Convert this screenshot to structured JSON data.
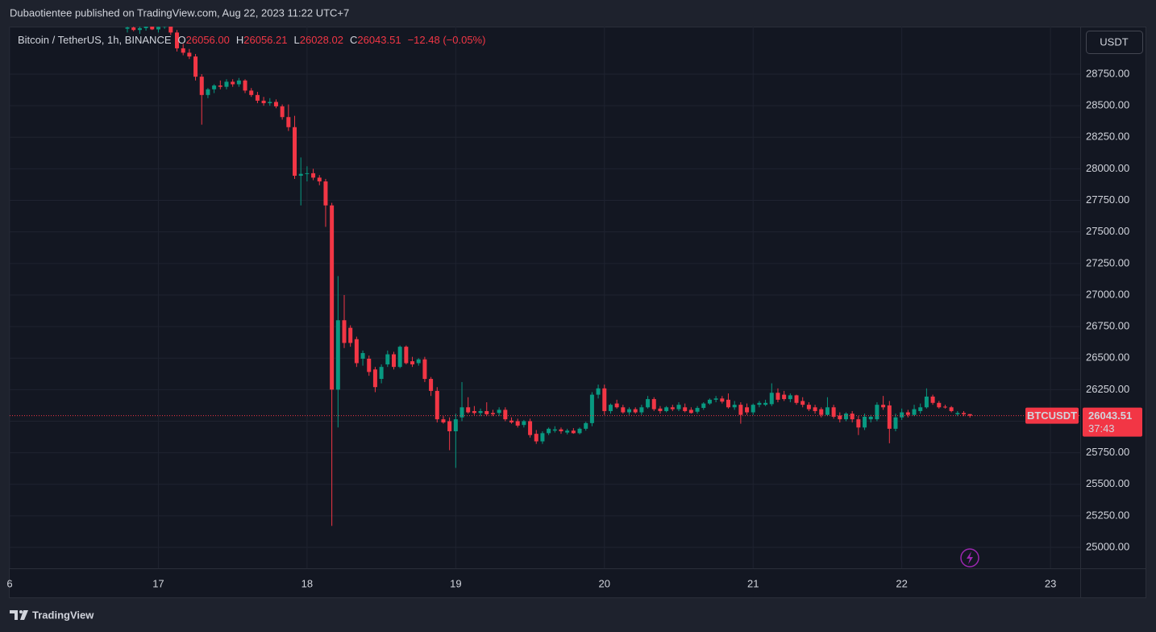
{
  "chart_data": {
    "type": "candlestick",
    "title": "Dubaotientee published on TradingView.com, Aug 22, 2023 11:22 UTC+7",
    "subtitle": "Bitcoin / TetherUS, 1h, BINANCE",
    "ohlc_prefixes": [
      "O",
      "H",
      "L",
      "C"
    ],
    "last_labels": [
      "26056.00",
      "26056.21",
      "26028.02",
      "26043.51"
    ],
    "change": -12.48,
    "change_pct": -0.05,
    "change_label": "−12.48 (−0.05%)",
    "currency": "USDT",
    "symbol": "BTCUSDT",
    "countdown": "37:43",
    "brand": "TradingView",
    "up_color": "#089981",
    "down_color": "#f23645",
    "grid": true,
    "xlim": [
      16,
      23.2
    ],
    "xticks": [
      {
        "value": 16,
        "label": "6"
      },
      17,
      18,
      19,
      20,
      21,
      22,
      23
    ],
    "ylim": [
      24834,
      29127
    ],
    "yticks": [
      {
        "value": 25000,
        "label": "25000.00"
      },
      {
        "value": 25250,
        "label": "25250.00"
      },
      {
        "value": 25500,
        "label": "25500.00"
      },
      {
        "value": 25750,
        "label": "25750.00"
      },
      {
        "value": 26000,
        "label": "26000.00"
      },
      {
        "value": 26250,
        "label": "26250.00"
      },
      {
        "value": 26500,
        "label": "26500.00"
      },
      {
        "value": 26750,
        "label": "26750.00"
      },
      {
        "value": 27000,
        "label": "27000.00"
      },
      {
        "value": 27250,
        "label": "27250.00"
      },
      {
        "value": 27500,
        "label": "27500.00"
      },
      {
        "value": 27750,
        "label": "27750.00"
      },
      {
        "value": 28000,
        "label": "28000.00"
      },
      {
        "value": 28250,
        "label": "28250.00"
      },
      {
        "value": 28500,
        "label": "28500.00"
      },
      {
        "value": 28750,
        "label": "28750.00"
      }
    ],
    "x": [
      16.7917,
      16.8333,
      16.875,
      16.9167,
      16.9583,
      17,
      17.0417,
      17.0833,
      17.125,
      17.1667,
      17.2083,
      17.25,
      17.2917,
      17.3333,
      17.375,
      17.4167,
      17.4583,
      17.5,
      17.5417,
      17.5833,
      17.625,
      17.6667,
      17.7083,
      17.75,
      17.7917,
      17.8333,
      17.875,
      17.9167,
      17.9583,
      18,
      18.0417,
      18.0833,
      18.125,
      18.1667,
      18.2083,
      18.25,
      18.2917,
      18.3333,
      18.375,
      18.4167,
      18.4583,
      18.5,
      18.5417,
      18.5833,
      18.625,
      18.6667,
      18.7083,
      18.75,
      18.7917,
      18.8333,
      18.875,
      18.9167,
      18.9583,
      19,
      19.0417,
      19.0833,
      19.125,
      19.1667,
      19.2083,
      19.25,
      19.2917,
      19.3333,
      19.375,
      19.4167,
      19.4583,
      19.5,
      19.5417,
      19.5833,
      19.625,
      19.6667,
      19.7083,
      19.75,
      19.7917,
      19.8333,
      19.875,
      19.9167,
      19.9583,
      20,
      20.0417,
      20.0833,
      20.125,
      20.1667,
      20.2083,
      20.25,
      20.2917,
      20.3333,
      20.375,
      20.4167,
      20.4583,
      20.5,
      20.5417,
      20.5833,
      20.625,
      20.6667,
      20.7083,
      20.75,
      20.7917,
      20.8333,
      20.875,
      20.9167,
      20.9583,
      21,
      21.0417,
      21.0833,
      21.125,
      21.1667,
      21.2083,
      21.25,
      21.2917,
      21.3333,
      21.375,
      21.4167,
      21.4583,
      21.5,
      21.5417,
      21.5833,
      21.625,
      21.6667,
      21.7083,
      21.75,
      21.7917,
      21.8333,
      21.875,
      21.9167,
      21.9583,
      22,
      22.0417,
      22.0833,
      22.125,
      22.1667,
      22.2083,
      22.25,
      22.2917,
      22.3333,
      22.375,
      22.4167,
      22.4583
    ],
    "ohlc": [
      [
        29110,
        29140,
        29080,
        29120
      ],
      [
        29120,
        29150,
        29090,
        29100
      ],
      [
        29100,
        29130,
        29070,
        29115
      ],
      [
        29115,
        29150,
        29095,
        29130
      ],
      [
        29130,
        29160,
        29100,
        29105
      ],
      [
        29105,
        29140,
        29080,
        29125
      ],
      [
        29125,
        29160,
        29110,
        29140
      ],
      [
        29140,
        29170,
        29060,
        29080
      ],
      [
        29080,
        29100,
        28930,
        28955
      ],
      [
        28955,
        28990,
        28900,
        28920
      ],
      [
        28920,
        28950,
        28870,
        28890
      ],
      [
        28890,
        28910,
        28700,
        28730
      ],
      [
        28730,
        28750,
        28350,
        28585
      ],
      [
        28585,
        28640,
        28560,
        28630
      ],
      [
        28630,
        28670,
        28600,
        28660
      ],
      [
        28660,
        28700,
        28630,
        28650
      ],
      [
        28650,
        28710,
        28630,
        28690
      ],
      [
        28690,
        28710,
        28650,
        28670
      ],
      [
        28670,
        28720,
        28650,
        28700
      ],
      [
        28700,
        28710,
        28600,
        28620
      ],
      [
        28620,
        28640,
        28570,
        28585
      ],
      [
        28585,
        28610,
        28520,
        28540
      ],
      [
        28540,
        28570,
        28500,
        28520
      ],
      [
        28520,
        28560,
        28500,
        28530
      ],
      [
        28530,
        28550,
        28480,
        28495
      ],
      [
        28495,
        28510,
        28390,
        28410
      ],
      [
        28410,
        28510,
        28300,
        28330
      ],
      [
        28330,
        28420,
        27920,
        27945
      ],
      [
        27945,
        28090,
        27710,
        27960
      ],
      [
        27960,
        28020,
        27900,
        27965
      ],
      [
        27965,
        28000,
        27910,
        27930
      ],
      [
        27930,
        27950,
        27870,
        27900
      ],
      [
        27900,
        27920,
        27540,
        27710
      ],
      [
        27710,
        27730,
        25170,
        26250
      ],
      [
        26250,
        27150,
        25950,
        26800
      ],
      [
        26800,
        27000,
        26580,
        26620
      ],
      [
        26740,
        26760,
        26590,
        26620
      ],
      [
        26650,
        26670,
        26430,
        26460
      ],
      [
        26495,
        26560,
        26440,
        26540
      ],
      [
        26495,
        26520,
        26360,
        26390
      ],
      [
        26410,
        26430,
        26230,
        26270
      ],
      [
        26335,
        26450,
        26300,
        26430
      ],
      [
        26450,
        26560,
        26430,
        26530
      ],
      [
        26530,
        26550,
        26410,
        26430
      ],
      [
        26430,
        26600,
        26420,
        26590
      ],
      [
        26590,
        26600,
        26450,
        26460
      ],
      [
        26475,
        26510,
        26430,
        26450
      ],
      [
        26460,
        26500,
        26440,
        26490
      ],
      [
        26490,
        26510,
        26310,
        26335
      ],
      [
        26335,
        26350,
        26200,
        26240
      ],
      [
        26240,
        26270,
        25990,
        26015
      ],
      [
        26015,
        26040,
        25980,
        25990
      ],
      [
        26000,
        26030,
        25770,
        25920
      ],
      [
        25920,
        26060,
        25630,
        26015
      ],
      [
        26030,
        26310,
        26000,
        26110
      ],
      [
        26110,
        26190,
        26060,
        26070
      ],
      [
        26080,
        26120,
        26050,
        26065
      ],
      [
        26065,
        26100,
        26040,
        26080
      ],
      [
        26080,
        26150,
        26040,
        26055
      ],
      [
        26065,
        26090,
        26040,
        26055
      ],
      [
        26065,
        26110,
        26040,
        26090
      ],
      [
        26090,
        26110,
        26000,
        26015
      ],
      [
        26005,
        26030,
        25980,
        25990
      ],
      [
        26000,
        26020,
        25950,
        25965
      ],
      [
        25970,
        26010,
        25950,
        26000
      ],
      [
        26000,
        26020,
        25870,
        25890
      ],
      [
        25900,
        25930,
        25820,
        25840
      ],
      [
        25840,
        25920,
        25820,
        25905
      ],
      [
        25905,
        25950,
        25890,
        25940
      ],
      [
        25925,
        25960,
        25910,
        25935
      ],
      [
        25935,
        25950,
        25900,
        25920
      ],
      [
        25910,
        25940,
        25895,
        25925
      ],
      [
        25925,
        25945,
        25900,
        25905
      ],
      [
        25905,
        25950,
        25895,
        25940
      ],
      [
        25940,
        25995,
        25925,
        25985
      ],
      [
        25985,
        26230,
        25960,
        26210
      ],
      [
        26210,
        26290,
        26180,
        26260
      ],
      [
        26260,
        26290,
        26050,
        26080
      ],
      [
        26080,
        26140,
        26060,
        26130
      ],
      [
        26140,
        26170,
        26100,
        26110
      ],
      [
        26110,
        26130,
        26060,
        26070
      ],
      [
        26070,
        26110,
        26050,
        26095
      ],
      [
        26095,
        26110,
        26060,
        26070
      ],
      [
        26070,
        26130,
        26050,
        26110
      ],
      [
        26110,
        26200,
        26100,
        26175
      ],
      [
        26175,
        26190,
        26080,
        26095
      ],
      [
        26100,
        26120,
        26060,
        26080
      ],
      [
        26080,
        26120,
        26070,
        26110
      ],
      [
        26110,
        26130,
        26080,
        26095
      ],
      [
        26095,
        26150,
        26080,
        26130
      ],
      [
        26110,
        26140,
        26070,
        26080
      ],
      [
        26090,
        26110,
        26060,
        26065
      ],
      [
        26075,
        26120,
        26060,
        26105
      ],
      [
        26105,
        26150,
        26090,
        26140
      ],
      [
        26140,
        26180,
        26130,
        26170
      ],
      [
        26170,
        26200,
        26150,
        26180
      ],
      [
        26180,
        26200,
        26140,
        26155
      ],
      [
        26170,
        26220,
        26100,
        26110
      ],
      [
        26110,
        26160,
        26090,
        26130
      ],
      [
        26130,
        26150,
        25980,
        26050
      ],
      [
        26110,
        26140,
        26050,
        26070
      ],
      [
        26070,
        26140,
        26050,
        26130
      ],
      [
        26130,
        26160,
        26110,
        26145
      ],
      [
        26130,
        26170,
        26120,
        26145
      ],
      [
        26135,
        26300,
        26120,
        26225
      ],
      [
        26225,
        26260,
        26150,
        26170
      ],
      [
        26210,
        26240,
        26160,
        26175
      ],
      [
        26175,
        26220,
        26150,
        26205
      ],
      [
        26205,
        26210,
        26130,
        26145
      ],
      [
        26160,
        26190,
        26110,
        26130
      ],
      [
        26130,
        26150,
        26080,
        26095
      ],
      [
        26110,
        26130,
        26060,
        26080
      ],
      [
        26095,
        26110,
        26030,
        26050
      ],
      [
        26050,
        26190,
        26040,
        26110
      ],
      [
        26110,
        26130,
        26020,
        26035
      ],
      [
        26045,
        26070,
        25990,
        26015
      ],
      [
        26015,
        26070,
        26000,
        26060
      ],
      [
        26060,
        26080,
        25990,
        26015
      ],
      [
        26015,
        26040,
        25890,
        25950
      ],
      [
        25950,
        26060,
        25930,
        26035
      ],
      [
        26015,
        26050,
        25990,
        26035
      ],
      [
        26015,
        26150,
        26000,
        26130
      ],
      [
        26130,
        26200,
        26090,
        26110
      ],
      [
        26125,
        26160,
        25825,
        25940
      ],
      [
        25940,
        26060,
        25920,
        26030
      ],
      [
        26030,
        26100,
        26010,
        26070
      ],
      [
        26070,
        26090,
        26030,
        26050
      ],
      [
        26050,
        26130,
        26040,
        26095
      ],
      [
        26080,
        26140,
        26060,
        26110
      ],
      [
        26110,
        26260,
        26100,
        26195
      ],
      [
        26195,
        26210,
        26130,
        26145
      ],
      [
        26145,
        26160,
        26100,
        26110
      ],
      [
        26115,
        26130,
        26100,
        26110
      ],
      [
        26110,
        26120,
        26070,
        26080
      ],
      [
        26055,
        26080,
        26040,
        26065
      ],
      [
        26065,
        26080,
        26040,
        26055
      ],
      [
        26056.0,
        26056.21,
        26028.02,
        26043.51
      ]
    ]
  }
}
